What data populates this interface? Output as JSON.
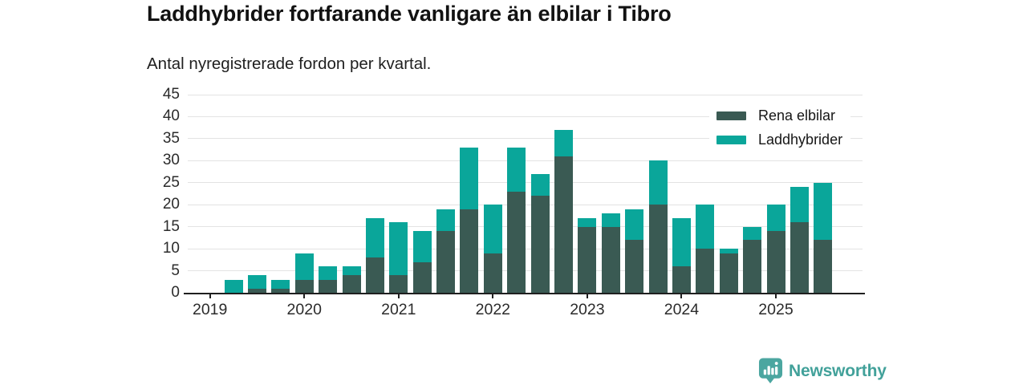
{
  "header": {
    "title": "Laddhybrider fortfarande vanligare än elbilar i Tibro",
    "subtitle": "Antal nyregistrerade fordon per kvartal."
  },
  "legend": {
    "items": [
      {
        "label": "Rena elbilar",
        "color": "#3a5a53"
      },
      {
        "label": "Laddhybrider",
        "color": "#0aa69a"
      }
    ]
  },
  "footer": {
    "brand": "Newsworthy",
    "brand_color": "#42a19a",
    "logo_icon": "newsworthy-pin-barchart-icon",
    "logo_color": "#4ba6a0"
  },
  "chart_data": {
    "type": "bar",
    "stacked": true,
    "title": "Laddhybrider fortfarande vanligare än elbilar i Tibro",
    "subtitle": "Antal nyregistrerade fordon per kvartal.",
    "categories": [
      "2019 Q2",
      "2019 Q3",
      "2019 Q4",
      "2020 Q1",
      "2020 Q2",
      "2020 Q3",
      "2020 Q4",
      "2021 Q1",
      "2021 Q2",
      "2021 Q3",
      "2021 Q4",
      "2022 Q1",
      "2022 Q2",
      "2022 Q3",
      "2022 Q4",
      "2023 Q1",
      "2023 Q2",
      "2023 Q3",
      "2023 Q4",
      "2024 Q1",
      "2024 Q2",
      "2024 Q3",
      "2024 Q4",
      "2025 Q1",
      "2025 Q2",
      "2025 Q3"
    ],
    "series": [
      {
        "name": "Rena elbilar",
        "color": "#3a5a53",
        "values": [
          0,
          1,
          1,
          3,
          3,
          4,
          8,
          4,
          7,
          14,
          19,
          9,
          23,
          22,
          31,
          15,
          15,
          12,
          20,
          6,
          10,
          9,
          12,
          14,
          16,
          12
        ]
      },
      {
        "name": "Laddhybrider",
        "color": "#0aa69a",
        "values": [
          3,
          3,
          2,
          6,
          3,
          2,
          9,
          12,
          7,
          5,
          14,
          11,
          10,
          5,
          6,
          2,
          3,
          7,
          10,
          11,
          10,
          1,
          3,
          6,
          8,
          13
        ]
      }
    ],
    "x_tick_labels": [
      "2019",
      "2020",
      "2021",
      "2022",
      "2023",
      "2024",
      "2025"
    ],
    "y_ticks": [
      0,
      5,
      10,
      15,
      20,
      25,
      30,
      35,
      40,
      45
    ],
    "ylim": [
      0,
      45
    ],
    "grid": "horizontal",
    "legend_position": "top-right",
    "ylabel": "",
    "xlabel": ""
  }
}
